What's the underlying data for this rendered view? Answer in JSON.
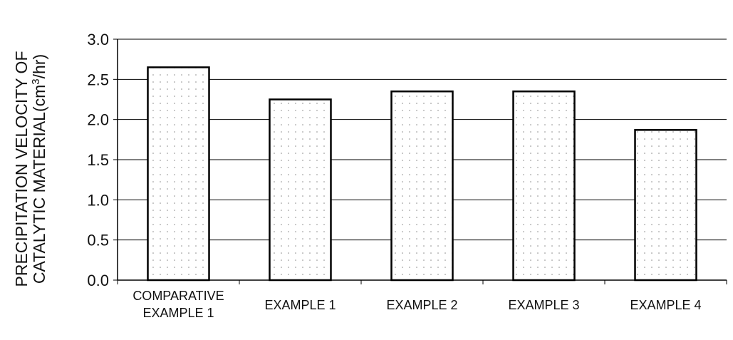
{
  "chart_data": {
    "type": "bar",
    "title": "",
    "xlabel": "",
    "ylabel_lines": [
      "PRECIPITATION VELOCITY OF",
      "CATALYTIC MATERIAL(cm",
      "3",
      "/hr)"
    ],
    "categories": [
      [
        "COMPARATIVE",
        "EXAMPLE 1"
      ],
      [
        "EXAMPLE 1"
      ],
      [
        "EXAMPLE 2"
      ],
      [
        "EXAMPLE 3"
      ],
      [
        "EXAMPLE 4"
      ]
    ],
    "values": [
      2.65,
      2.25,
      2.35,
      2.35,
      1.87
    ],
    "ylim": [
      0,
      3.0
    ],
    "yticks": [
      "0.0",
      "0.5",
      "1.0",
      "1.5",
      "2.0",
      "2.5",
      "3.0"
    ],
    "grid": true,
    "legend": "none",
    "colors": {
      "bar_fill": "#ffffff",
      "bar_stroke": "#000000",
      "dot": "#8a8a8a"
    }
  }
}
